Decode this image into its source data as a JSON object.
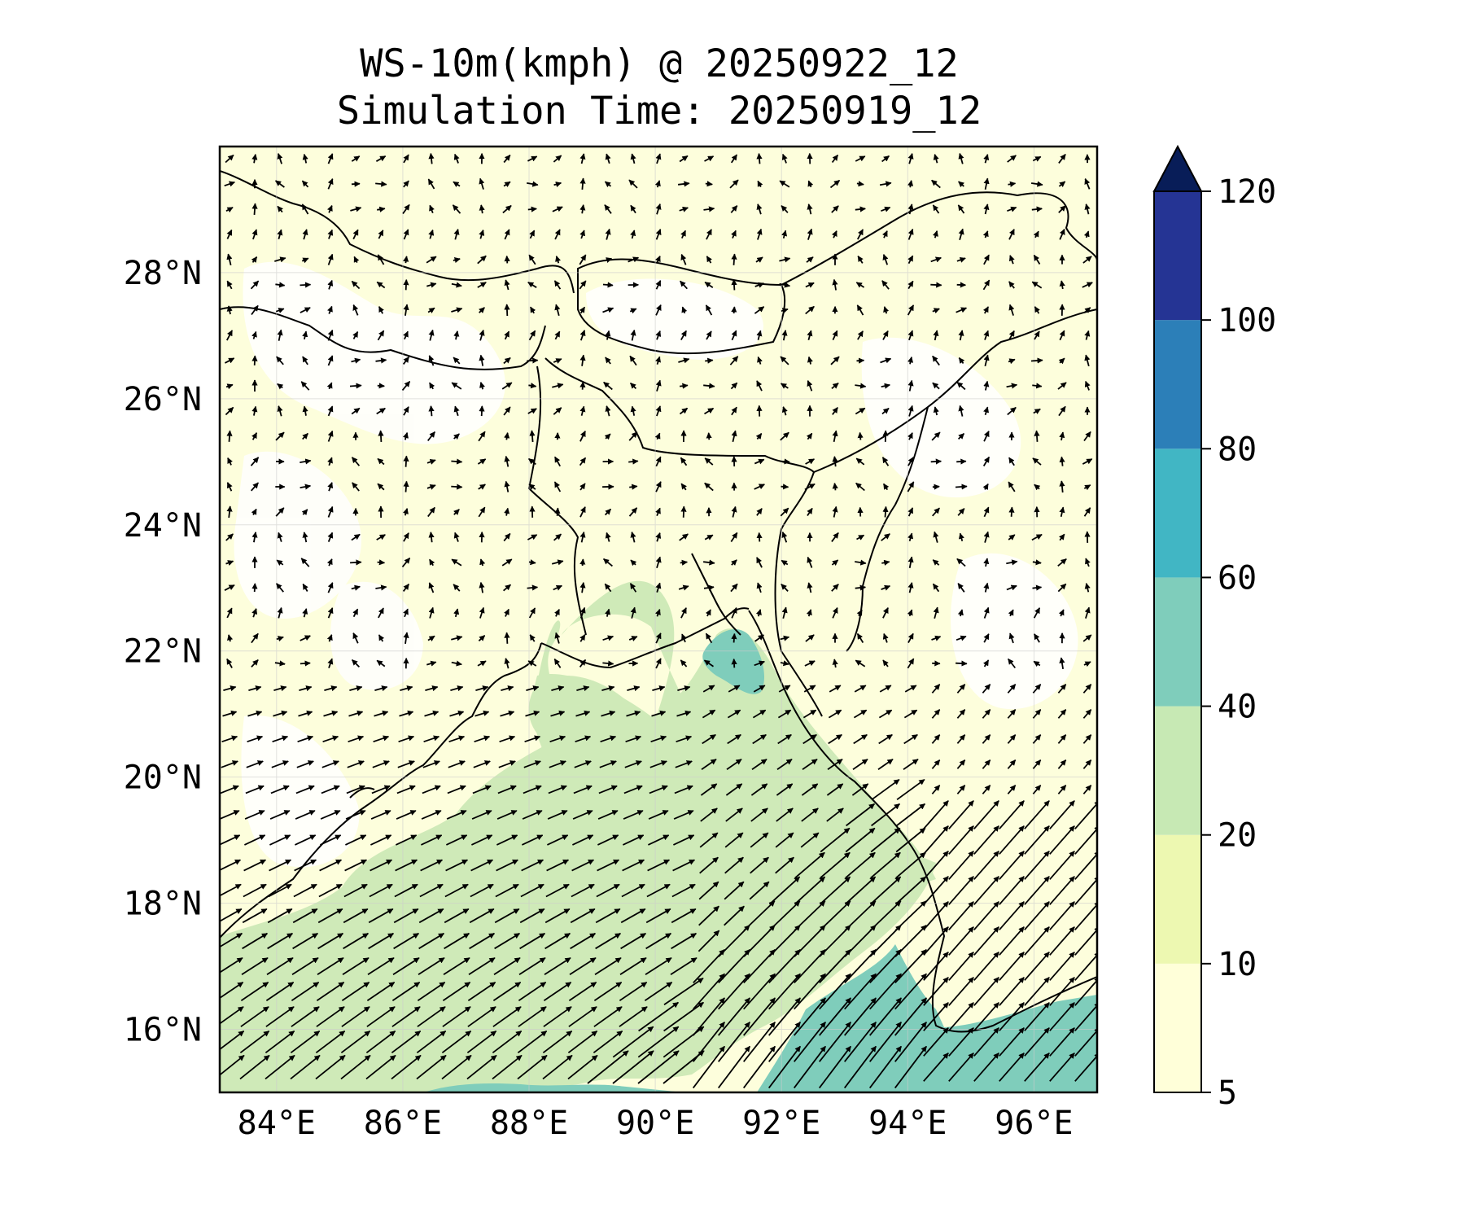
{
  "title": {
    "line1": "WS-10m(kmph) @ 20250922_12",
    "line2": "Simulation Time: 20250919_12"
  },
  "map": {
    "lon_range": [
      83.1,
      97.0
    ],
    "lat_range": [
      15.0,
      30.0
    ],
    "lon_ticks": [
      {
        "value": 84,
        "label": "84°E"
      },
      {
        "value": 86,
        "label": "86°E"
      },
      {
        "value": 88,
        "label": "88°E"
      },
      {
        "value": 90,
        "label": "90°E"
      },
      {
        "value": 92,
        "label": "92°E"
      },
      {
        "value": 94,
        "label": "94°E"
      },
      {
        "value": 96,
        "label": "96°E"
      }
    ],
    "lat_ticks": [
      {
        "value": 16,
        "label": "16°N"
      },
      {
        "value": 18,
        "label": "18°N"
      },
      {
        "value": 20,
        "label": "20°N"
      },
      {
        "value": 22,
        "label": "22°N"
      },
      {
        "value": 24,
        "label": "24°N"
      },
      {
        "value": 26,
        "label": "26°N"
      },
      {
        "value": 28,
        "label": "28°N"
      }
    ],
    "grid": true,
    "wind_vectors": true
  },
  "colorbar": {
    "extend": "max",
    "levels": [
      {
        "value": 5,
        "label": "5"
      },
      {
        "value": 10,
        "label": "10"
      },
      {
        "value": 20,
        "label": "20"
      },
      {
        "value": 40,
        "label": "40"
      },
      {
        "value": 60,
        "label": "60"
      },
      {
        "value": 80,
        "label": "80"
      },
      {
        "value": 100,
        "label": "100"
      },
      {
        "value": 120,
        "label": "120"
      }
    ],
    "colors": [
      "#ffffd9",
      "#edf8b1",
      "#c7e9b4",
      "#7fcdbb",
      "#41b6c4",
      "#2c7fb8",
      "#253494"
    ],
    "extend_color": "#081d58"
  }
}
